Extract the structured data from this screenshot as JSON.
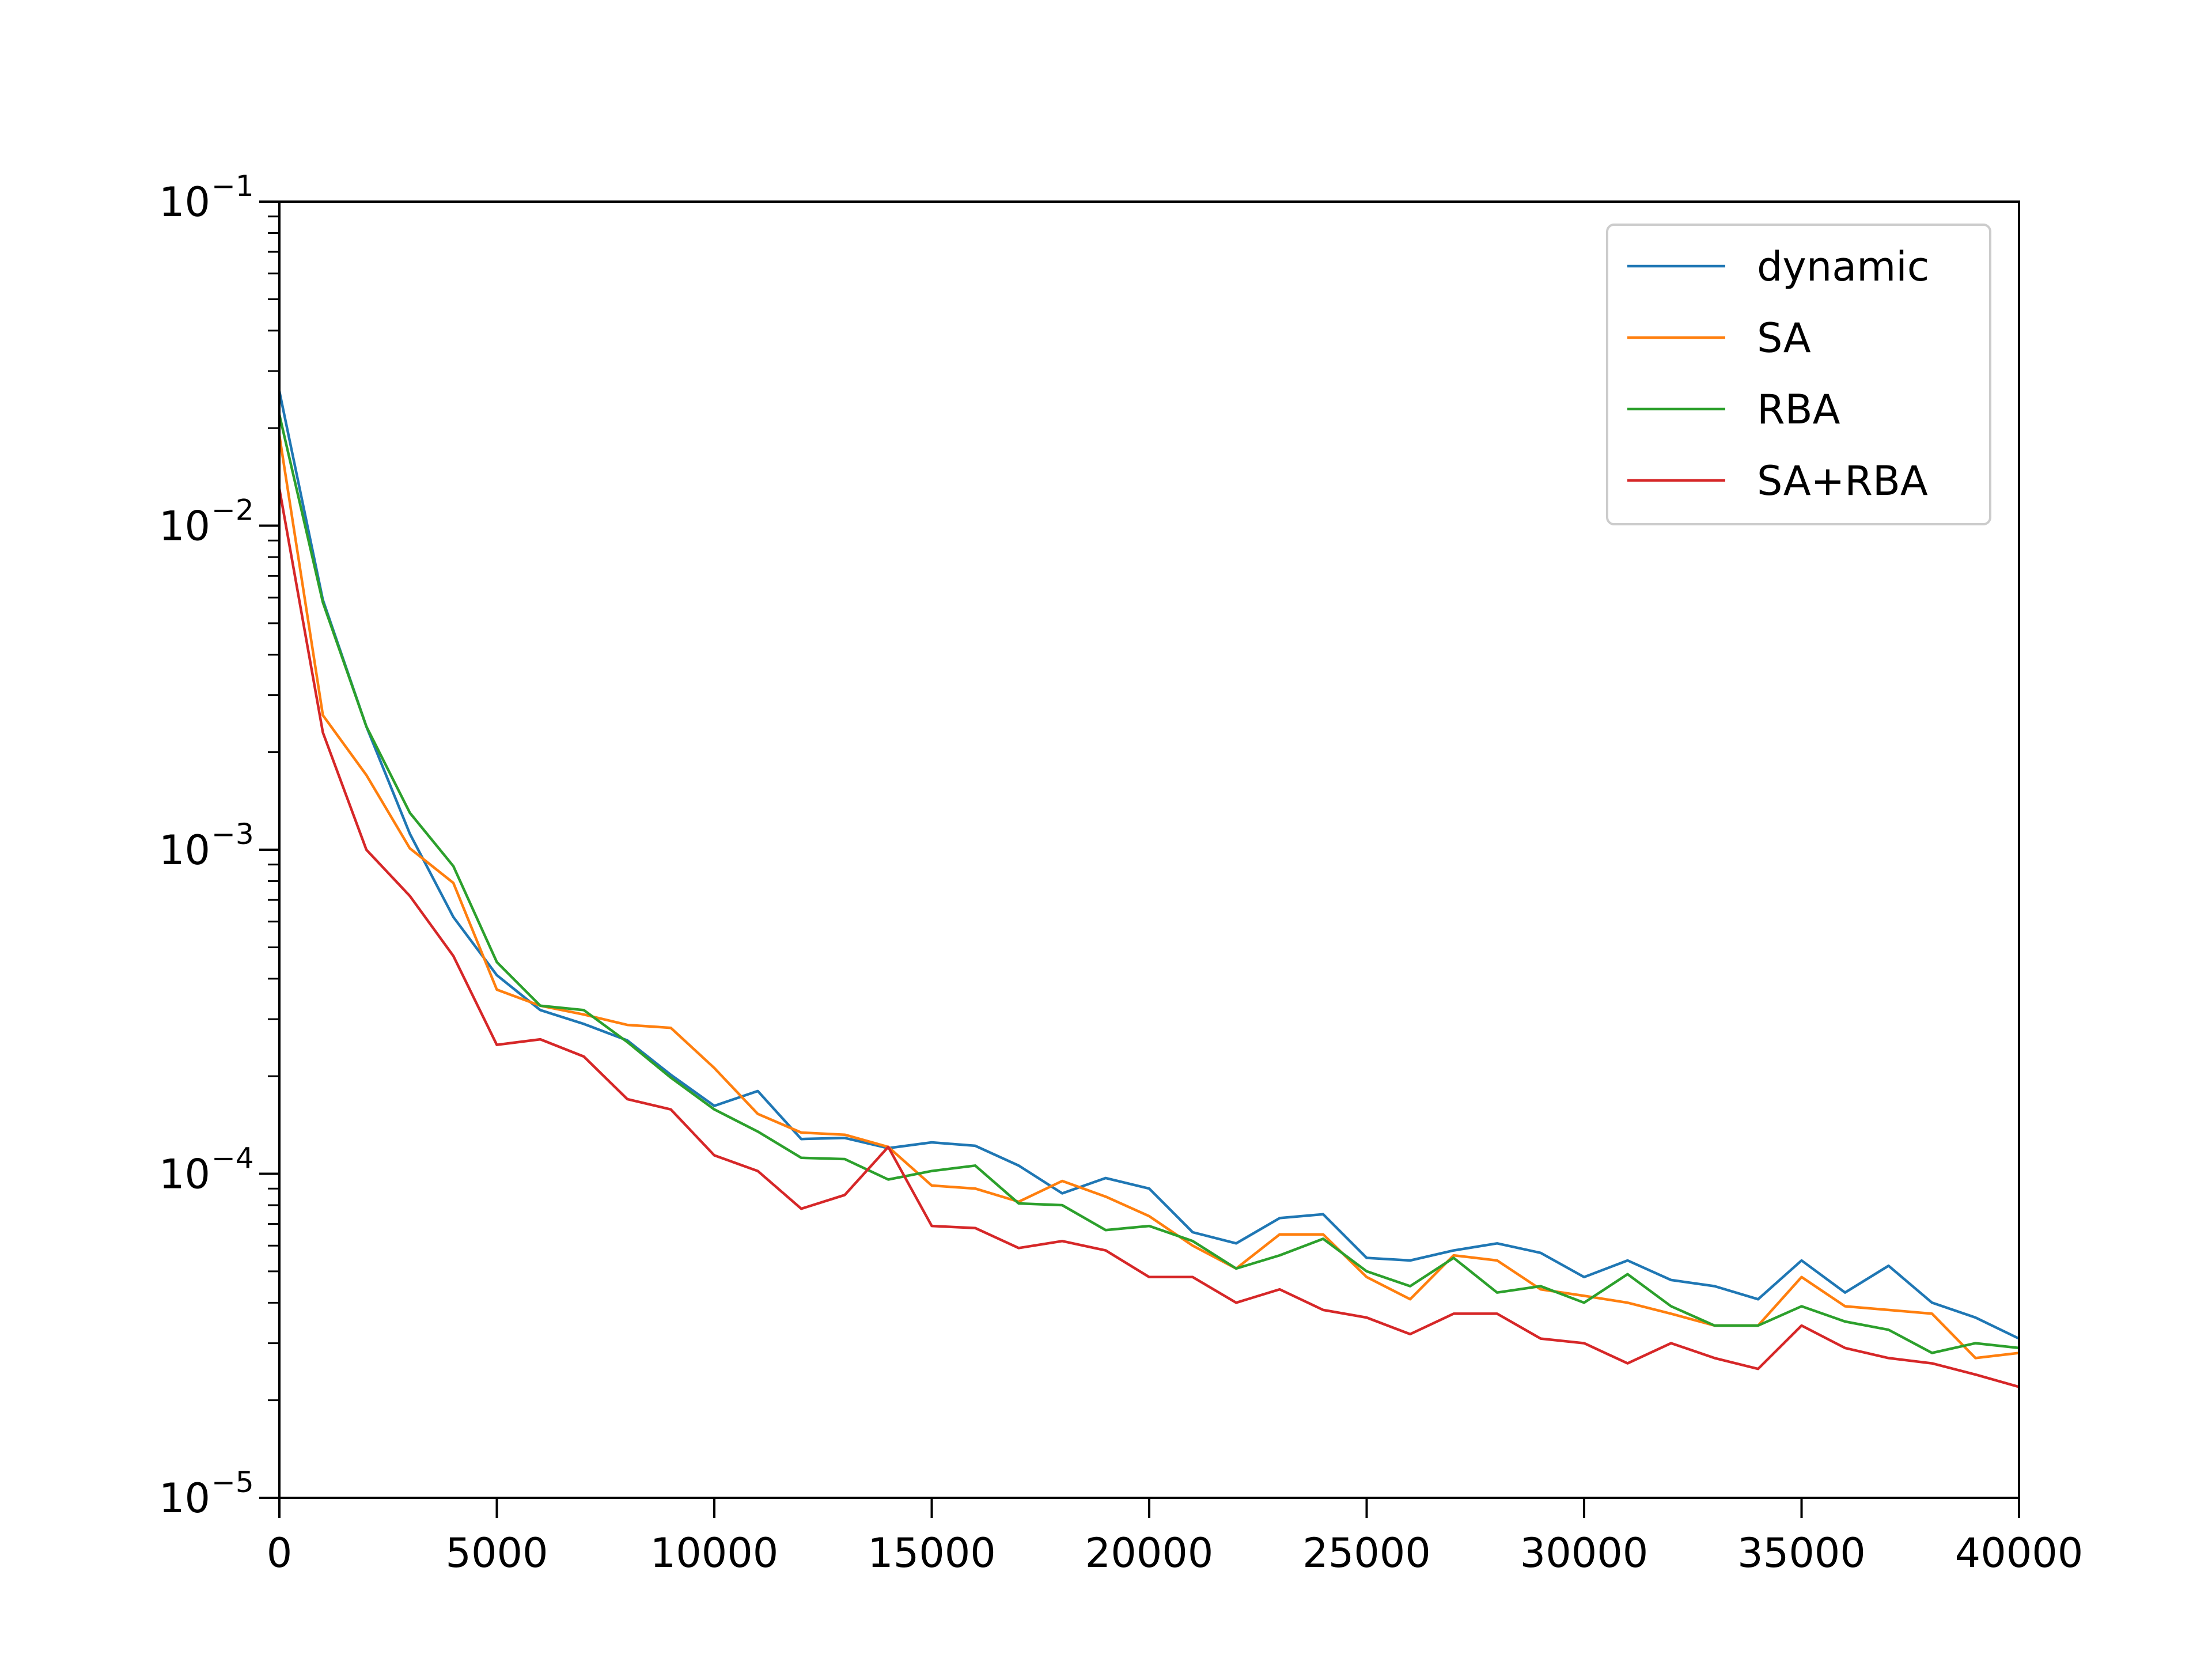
{
  "chart_data": {
    "type": "line",
    "title": "",
    "xlabel": "",
    "ylabel": "",
    "xlim": [
      0,
      40000
    ],
    "ylim": [
      1e-05,
      0.1
    ],
    "yscale": "log",
    "grid": false,
    "legend_position": "top-right",
    "x_ticks": [
      {
        "value": 0,
        "label": "0"
      },
      {
        "value": 5000,
        "label": "5000"
      },
      {
        "value": 10000,
        "label": "10000"
      },
      {
        "value": 15000,
        "label": "15000"
      },
      {
        "value": 20000,
        "label": "20000"
      },
      {
        "value": 25000,
        "label": "25000"
      },
      {
        "value": 30000,
        "label": "30000"
      },
      {
        "value": 35000,
        "label": "35000"
      },
      {
        "value": 40000,
        "label": "40000"
      }
    ],
    "y_ticks": [
      {
        "value": 1e-05,
        "base": "10",
        "exp": "−5"
      },
      {
        "value": 0.0001,
        "base": "10",
        "exp": "−4"
      },
      {
        "value": 0.001,
        "base": "10",
        "exp": "−3"
      },
      {
        "value": 0.01,
        "base": "10",
        "exp": "−2"
      },
      {
        "value": 0.1,
        "base": "10",
        "exp": "−1"
      }
    ],
    "x": [
      0,
      1000,
      2000,
      3000,
      4000,
      5000,
      6000,
      7000,
      8000,
      9000,
      10000,
      11000,
      12000,
      13000,
      14000,
      15000,
      16000,
      17000,
      18000,
      19000,
      20000,
      21000,
      22000,
      23000,
      24000,
      25000,
      26000,
      27000,
      28000,
      29000,
      30000,
      31000,
      32000,
      33000,
      34000,
      35000,
      36000,
      37000,
      38000,
      39000,
      40000
    ],
    "series": [
      {
        "name": "dynamic",
        "color": "#1f77b4",
        "values": [
          0.026,
          0.0059,
          0.0024,
          0.00112,
          0.00062,
          0.00041,
          0.00032,
          0.00029,
          0.000258,
          0.000202,
          0.000162,
          0.00018,
          0.000128,
          0.000129,
          0.00012,
          0.000125,
          0.000122,
          0.000106,
          8.7e-05,
          9.7e-05,
          9e-05,
          6.6e-05,
          6.1e-05,
          7.3e-05,
          7.5e-05,
          5.5e-05,
          5.4e-05,
          5.8e-05,
          6.1e-05,
          5.7e-05,
          4.8e-05,
          5.4e-05,
          4.7e-05,
          4.5e-05,
          4.1e-05,
          5.4e-05,
          4.3e-05,
          5.2e-05,
          4e-05,
          3.6e-05,
          3.1e-05
        ]
      },
      {
        "name": "SA",
        "color": "#ff7f0e",
        "values": [
          0.019,
          0.0026,
          0.0017,
          0.00101,
          0.00079,
          0.00037,
          0.00033,
          0.00031,
          0.000288,
          0.000282,
          0.000212,
          0.000153,
          0.000134,
          0.000132,
          0.000121,
          9.2e-05,
          9e-05,
          8.2e-05,
          9.5e-05,
          8.5e-05,
          7.4e-05,
          6e-05,
          5.1e-05,
          6.5e-05,
          6.5e-05,
          4.8e-05,
          4.1e-05,
          5.6e-05,
          5.4e-05,
          4.4e-05,
          4.2e-05,
          4e-05,
          3.7e-05,
          3.4e-05,
          3.4e-05,
          4.8e-05,
          3.9e-05,
          3.8e-05,
          3.7e-05,
          2.7e-05,
          2.8e-05
        ]
      },
      {
        "name": "RBA",
        "color": "#2ca02c",
        "values": [
          0.022,
          0.0058,
          0.0024,
          0.0013,
          0.00089,
          0.00045,
          0.00033,
          0.00032,
          0.000255,
          0.000198,
          0.000158,
          0.000135,
          0.000112,
          0.000111,
          9.6e-05,
          0.000102,
          0.000106,
          8.1e-05,
          8e-05,
          6.7e-05,
          6.9e-05,
          6.2e-05,
          5.1e-05,
          5.6e-05,
          6.3e-05,
          5e-05,
          4.5e-05,
          5.5e-05,
          4.3e-05,
          4.5e-05,
          4e-05,
          4.9e-05,
          3.9e-05,
          3.4e-05,
          3.4e-05,
          3.9e-05,
          3.5e-05,
          3.3e-05,
          2.8e-05,
          3e-05,
          2.9e-05
        ]
      },
      {
        "name": "SA+RBA",
        "color": "#d62728",
        "values": [
          0.013,
          0.0023,
          0.001,
          0.00072,
          0.00047,
          0.00025,
          0.00026,
          0.00023,
          0.00017,
          0.000158,
          0.000114,
          0.000102,
          7.8e-05,
          8.6e-05,
          0.000121,
          6.9e-05,
          6.8e-05,
          5.9e-05,
          6.2e-05,
          5.8e-05,
          4.8e-05,
          4.8e-05,
          4e-05,
          4.4e-05,
          3.8e-05,
          3.6e-05,
          3.2e-05,
          3.7e-05,
          3.7e-05,
          3.1e-05,
          3e-05,
          2.6e-05,
          3e-05,
          2.7e-05,
          2.5e-05,
          3.4e-05,
          2.9e-05,
          2.7e-05,
          2.6e-05,
          2.4e-05,
          2.2e-05
        ]
      }
    ]
  }
}
